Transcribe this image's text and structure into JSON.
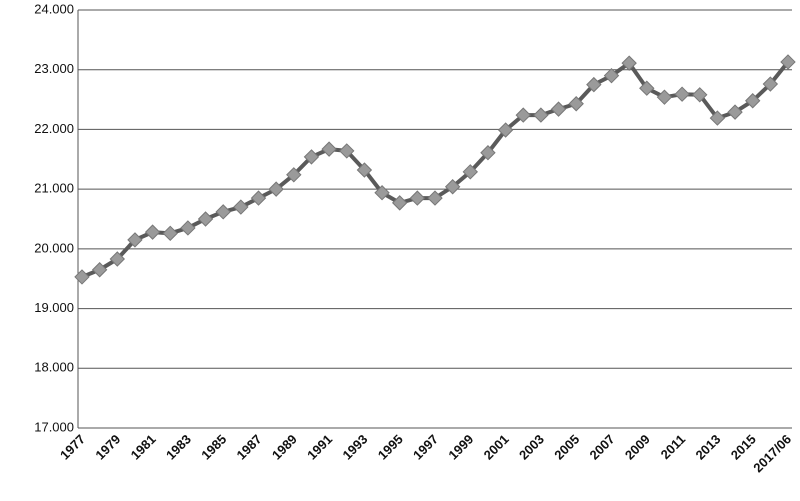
{
  "chart_data": {
    "type": "line",
    "categories": [
      "1977",
      null,
      "1979",
      null,
      "1981",
      null,
      "1983",
      null,
      "1985",
      null,
      "1987",
      null,
      "1989",
      null,
      "1991",
      null,
      "1993",
      null,
      "1995",
      null,
      "1997",
      null,
      "1999",
      null,
      "2001",
      null,
      "2003",
      null,
      "2005",
      null,
      "2007",
      null,
      "2009",
      null,
      "2011",
      null,
      "2013",
      null,
      "2015",
      null,
      "2017/06"
    ],
    "values": [
      19530,
      19650,
      19830,
      20150,
      20280,
      20260,
      20350,
      20500,
      20620,
      20700,
      20850,
      21000,
      21240,
      21540,
      21670,
      21640,
      21320,
      20940,
      20770,
      20850,
      20850,
      21040,
      21290,
      21610,
      21990,
      22240,
      22240,
      22340,
      22430,
      22750,
      22900,
      23110,
      22690,
      22540,
      22590,
      22580,
      22190,
      22290,
      22480,
      22760,
      23130
    ],
    "color": "#5a5a5a",
    "marker_color": "#9a9a9a",
    "ylim": [
      17000,
      24000
    ],
    "yticks": [
      {
        "value": 17000,
        "label": "17.000"
      },
      {
        "value": 18000,
        "label": "18.000"
      },
      {
        "value": 19000,
        "label": "19.000"
      },
      {
        "value": 20000,
        "label": "20.000"
      },
      {
        "value": 21000,
        "label": "21.000"
      },
      {
        "value": 22000,
        "label": "22.000"
      },
      {
        "value": 23000,
        "label": "23.000"
      },
      {
        "value": 24000,
        "label": "24.000"
      }
    ],
    "grid": true
  }
}
